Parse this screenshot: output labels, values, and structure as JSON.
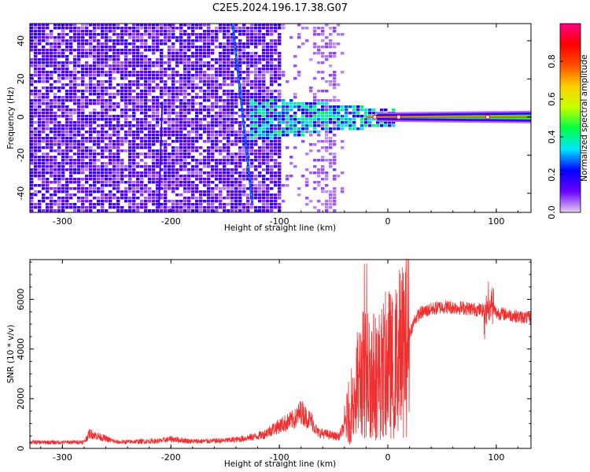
{
  "title": "C2E5.2024.196.17.38.G07",
  "chart_data": [
    {
      "type": "heatmap",
      "xlabel": "Height of straight line (km)",
      "ylabel": "Frequency (Hz)",
      "xlim": [
        -330,
        132
      ],
      "ylim": [
        -50,
        49
      ],
      "x_ticks": [
        -300,
        -200,
        -100,
        0,
        100
      ],
      "y_ticks": [
        -40,
        -20,
        0,
        20,
        40
      ],
      "x_tick_labels": [
        "-300",
        "-200",
        "-100",
        "0",
        "100"
      ],
      "y_tick_labels": [
        "-40",
        "-20",
        "0",
        "20",
        "40"
      ],
      "colorbar": {
        "label": "Normalized spectral amplitude",
        "range": [
          0,
          1
        ],
        "ticks": [
          0,
          0.2,
          0.4,
          0.6,
          0.8
        ],
        "tick_labels": [
          "0.0",
          "0.2",
          "0.4",
          "0.6",
          "0.8"
        ],
        "colormap": [
          "#e6cdf0",
          "#6a00ff",
          "#0000ff",
          "#00e5ff",
          "#00ff44",
          "#c8ff00",
          "#ffd000",
          "#ff5000",
          "#ff0000",
          "#ff0088"
        ]
      },
      "features": {
        "noise_region_x": [
          -330,
          -100
        ],
        "scattered_region_x": [
          -100,
          -40
        ],
        "signal_line_x": [
          -130,
          132
        ],
        "signal_line_freq": 0,
        "diagonal_streak": {
          "x": [
            -143,
            -125
          ],
          "y": [
            49,
            -45
          ]
        },
        "peak_points": [
          {
            "x": -12,
            "y": 0
          },
          {
            "x": 10,
            "y": 0
          },
          {
            "x": 92,
            "y": 0
          }
        ]
      }
    },
    {
      "type": "line",
      "xlabel": "Height of straight line (km)",
      "ylabel": "SNR (10 * v/v)",
      "xlim": [
        -330,
        132
      ],
      "ylim": [
        0,
        7600
      ],
      "x_ticks": [
        -300,
        -200,
        -100,
        0,
        100
      ],
      "y_ticks": [
        0,
        2000,
        4000,
        6000
      ],
      "x_tick_labels": [
        "-300",
        "-200",
        "-100",
        "0",
        "100"
      ],
      "y_tick_labels": [
        "0",
        "2000",
        "4000",
        "6000"
      ],
      "series": [
        {
          "color": "#f03030",
          "x": [
            -330,
            -300,
            -280,
            -275,
            -250,
            -210,
            -200,
            -180,
            -160,
            -150,
            -140,
            -125,
            -115,
            -105,
            -95,
            -85,
            -80,
            -75,
            -70,
            -65,
            -60,
            -55,
            -50,
            -45,
            -40,
            -35,
            -30,
            -25,
            -20,
            -15,
            -10,
            -5,
            0,
            5,
            10,
            15,
            20,
            25,
            30,
            40,
            50,
            60,
            70,
            80,
            90,
            95,
            100,
            110,
            120,
            132
          ],
          "y": [
            250,
            240,
            260,
            600,
            250,
            300,
            380,
            280,
            300,
            320,
            350,
            450,
            550,
            800,
            1000,
            1200,
            1500,
            1250,
            1100,
            650,
            600,
            550,
            500,
            480,
            900,
            1600,
            2300,
            2900,
            3100,
            3000,
            2900,
            3100,
            3500,
            3200,
            3800,
            4000,
            4600,
            5200,
            5450,
            5600,
            5700,
            5680,
            5650,
            5600,
            5550,
            5800,
            5450,
            5400,
            5300,
            5250
          ]
        }
      ]
    }
  ]
}
